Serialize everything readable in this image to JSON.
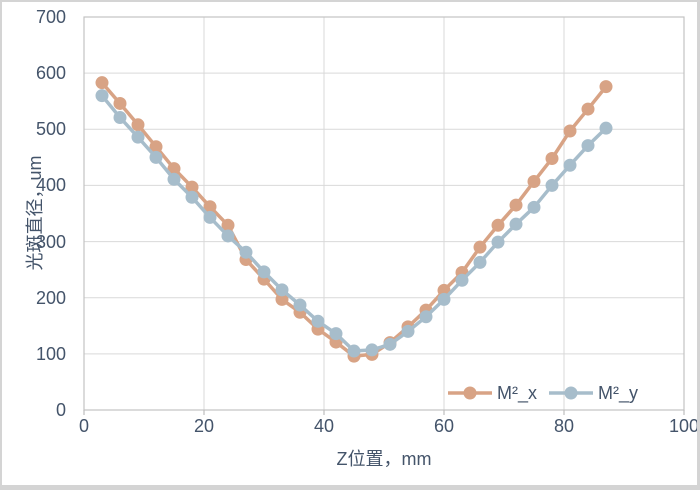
{
  "chart_data": {
    "type": "line",
    "title": "",
    "xlabel": "Z位置，mm",
    "ylabel": "光斑直径，um",
    "xlim": [
      0,
      100
    ],
    "ylim": [
      0,
      700
    ],
    "x_ticks": [
      0,
      20,
      40,
      60,
      80,
      100
    ],
    "y_ticks": [
      0,
      100,
      200,
      300,
      400,
      500,
      600,
      700
    ],
    "grid": true,
    "legend_position": "inside-bottom-right",
    "x": [
      3,
      6,
      9,
      12,
      15,
      18,
      21,
      24,
      27,
      30,
      33,
      36,
      39,
      42,
      45,
      48,
      51,
      54,
      57,
      60,
      63,
      66,
      69,
      72,
      75,
      78,
      81,
      84,
      87
    ],
    "series": [
      {
        "name": "M²_x",
        "color": "#D8A385",
        "values": [
          583,
          546,
          508,
          469,
          430,
          397,
          362,
          329,
          268,
          233,
          197,
          174,
          144,
          121,
          96,
          99,
          120,
          148,
          178,
          213,
          245,
          290,
          329,
          365,
          407,
          448,
          497,
          536,
          576
        ]
      },
      {
        "name": "M²_y",
        "color": "#A7BDCB",
        "values": [
          560,
          521,
          486,
          450,
          411,
          379,
          343,
          310,
          281,
          246,
          214,
          187,
          158,
          136,
          105,
          107,
          117,
          140,
          166,
          197,
          231,
          263,
          299,
          331,
          361,
          400,
          436,
          471,
          502
        ]
      }
    ]
  },
  "styles": {
    "text_color": "#44546A",
    "grid_color": "#D9D9D9",
    "plot_border_color": "#C3C3C3",
    "tick_color": "#BDBDBD",
    "background": "#FFFFFF",
    "frame_color": "#D4D4D4"
  }
}
